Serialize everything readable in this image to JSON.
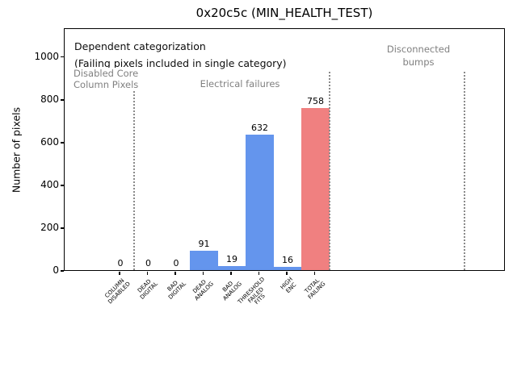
{
  "title": "0x20c5c (MIN_HEALTH_TEST)",
  "annotations": {
    "dependent_line1": "Dependent categorization",
    "dependent_line2": "(Failing pixels included in single category)",
    "region_disabled": "Disabled Core\nColumn Pixels",
    "region_electrical": "Electrical failures",
    "region_disconnected": "Disconnected\nbumps"
  },
  "chart_data": {
    "type": "bar",
    "title": "0x20c5c (MIN_HEALTH_TEST)",
    "xlabel": "",
    "ylabel": "Number of pixels",
    "categories": [
      "COLUMN\nDISABLED",
      "DEAD\nDIGITAL",
      "BAD\nDIGITAL",
      "DEAD\nANALOG",
      "BAD\nANALOG",
      "THRESHOLD\nFAILED\nFITS",
      "HIGH\nENC",
      "TOTAL\nFAILING"
    ],
    "values": [
      0,
      0,
      0,
      91,
      19,
      632,
      16,
      758
    ],
    "bar_colors": [
      "#6495ed",
      "#6495ed",
      "#6495ed",
      "#6495ed",
      "#6495ed",
      "#6495ed",
      "#6495ed",
      "#f08080"
    ],
    "value_labels": [
      0,
      0,
      0,
      91,
      19,
      632,
      16,
      758
    ],
    "yticks": [
      0,
      200,
      400,
      600,
      800,
      1000
    ],
    "ylim": [
      0,
      1135
    ],
    "grid": false,
    "legend": "none",
    "region_separators_x": [
      0.5,
      7.5,
      12.35
    ],
    "region_separator_ymax": 930,
    "regions": [
      {
        "label": "Disabled Core Column Pixels",
        "categories": [
          "COLUMN DISABLED"
        ]
      },
      {
        "label": "Electrical failures",
        "categories": [
          "DEAD DIGITAL",
          "BAD DIGITAL",
          "DEAD ANALOG",
          "BAD ANALOG",
          "THRESHOLD FAILED FITS",
          "HIGH ENC",
          "TOTAL FAILING"
        ]
      },
      {
        "label": "Disconnected bumps",
        "categories": []
      }
    ],
    "colors": {
      "default_bar": "#6495ed",
      "total_bar": "#f08080",
      "region_text": "#808080",
      "separator_line": "#8a8a8a",
      "axis": "#000000"
    }
  }
}
